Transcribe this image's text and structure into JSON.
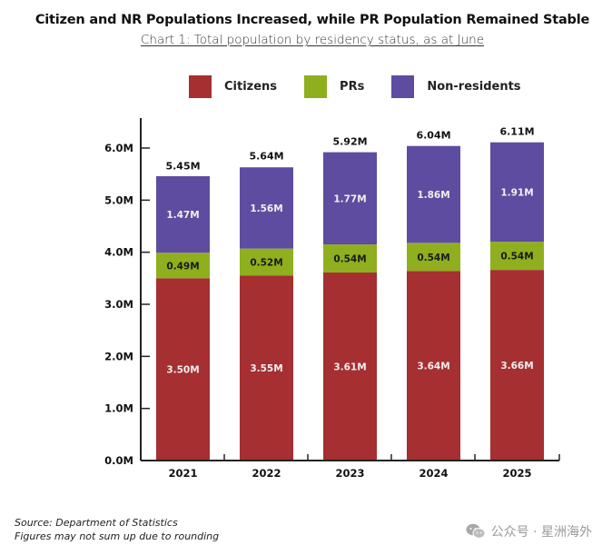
{
  "chart_data": {
    "type": "bar",
    "stacked": true,
    "title": "Citizen and NR Populations Increased, while PR Population Remained Stable",
    "subtitle": "Chart 1: Total population by residency status, as at June",
    "xlabel": "",
    "ylabel": "",
    "ylim": [
      0,
      6.5
    ],
    "yticks": [
      0,
      1,
      2,
      3,
      4,
      5,
      6
    ],
    "ytick_labels": [
      "0.0M",
      "1.0M",
      "2.0M",
      "3.0M",
      "4.0M",
      "5.0M",
      "6.0M"
    ],
    "categories": [
      "2021",
      "2022",
      "2023",
      "2024",
      "2025"
    ],
    "series": [
      {
        "name": "Citizens",
        "color": "#a52f31",
        "values": [
          3.5,
          3.55,
          3.61,
          3.64,
          3.66
        ],
        "labels": [
          "3.50M",
          "3.55M",
          "3.61M",
          "3.64M",
          "3.66M"
        ]
      },
      {
        "name": "PRs",
        "color": "#8faf1f",
        "values": [
          0.49,
          0.52,
          0.54,
          0.54,
          0.54
        ],
        "labels": [
          "0.49M",
          "0.52M",
          "0.54M",
          "0.54M",
          "0.54M"
        ]
      },
      {
        "name": "Non-residents",
        "color": "#5e4ca0",
        "values": [
          1.47,
          1.56,
          1.77,
          1.86,
          1.91
        ],
        "labels": [
          "1.47M",
          "1.56M",
          "1.77M",
          "1.86M",
          "1.91M"
        ]
      }
    ],
    "totals": [
      5.45,
      5.64,
      5.92,
      6.04,
      6.11
    ],
    "total_labels": [
      "5.45M",
      "5.64M",
      "5.92M",
      "6.04M",
      "6.11M"
    ],
    "legend_position": "top",
    "grid": false
  },
  "legend": {
    "items": [
      {
        "label": "Citizens",
        "color": "#a52f31"
      },
      {
        "label": "PRs",
        "color": "#8faf1f"
      },
      {
        "label": "Non-residents",
        "color": "#5e4ca0"
      }
    ]
  },
  "footer": {
    "source": "Source: Department of Statistics",
    "note": "Figures may not sum up due to rounding"
  },
  "watermark": {
    "icon": "wechat-icon",
    "text": "公众号 · 星洲海外"
  }
}
